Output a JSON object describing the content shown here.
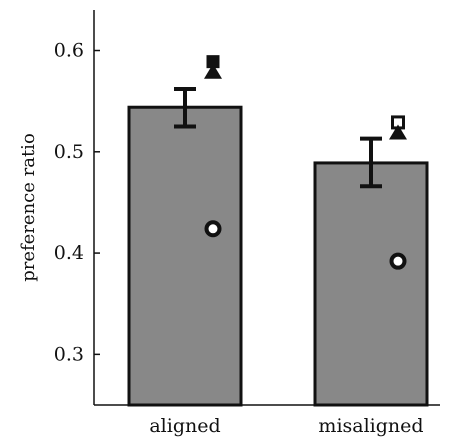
{
  "chart_data": {
    "type": "bar",
    "title": "",
    "xlabel": "",
    "ylabel": "preference ratio",
    "categories": [
      "aligned",
      "misaligned"
    ],
    "values": [
      0.544,
      0.489
    ],
    "error_low": [
      0.525,
      0.466
    ],
    "error_high": [
      0.562,
      0.513
    ],
    "ylim": [
      0.25,
      0.64
    ],
    "yticks": [
      0.3,
      0.4,
      0.5,
      0.6
    ],
    "ytick_labels": [
      "0.3",
      "0.4",
      "0.5",
      "0.6"
    ],
    "grid": false,
    "legend": "none",
    "bar_color": "#888888",
    "edge_color": "#111111",
    "markers": [
      {
        "category": "aligned",
        "shape": "filled-square",
        "value": 0.589
      },
      {
        "category": "aligned",
        "shape": "filled-triangle",
        "value": 0.579
      },
      {
        "category": "aligned",
        "shape": "hollow-circle",
        "value": 0.424
      },
      {
        "category": "misaligned",
        "shape": "hollow-square",
        "value": 0.529
      },
      {
        "category": "misaligned",
        "shape": "filled-triangle",
        "value": 0.519
      },
      {
        "category": "misaligned",
        "shape": "hollow-circle",
        "value": 0.392
      }
    ]
  }
}
